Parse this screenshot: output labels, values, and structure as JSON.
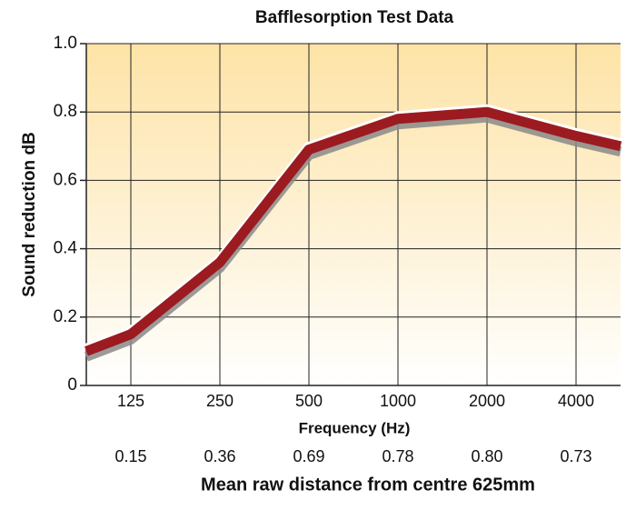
{
  "chart_data": {
    "type": "line",
    "title": "Bafflesorption Test Data",
    "y_label": "Sound reduction dB",
    "x_label": "Frequency (Hz)",
    "value_labels_title": "Mean raw distance from centre 625mm",
    "categories": [
      null,
      "125",
      "250",
      "500",
      "1000",
      "2000",
      "4000",
      null
    ],
    "values": [
      0.1,
      0.15,
      0.36,
      0.69,
      0.78,
      0.8,
      0.73,
      0.7
    ],
    "value_labels": [
      null,
      "0.15",
      "0.36",
      "0.69",
      "0.78",
      "0.80",
      "0.73",
      null
    ],
    "color": "#9b1b20",
    "ylim": [
      0,
      1
    ],
    "yticks": [
      0,
      0.2,
      0.4,
      0.6,
      0.8,
      {
        "value": 1,
        "label": "1.0"
      }
    ],
    "grid": true
  }
}
